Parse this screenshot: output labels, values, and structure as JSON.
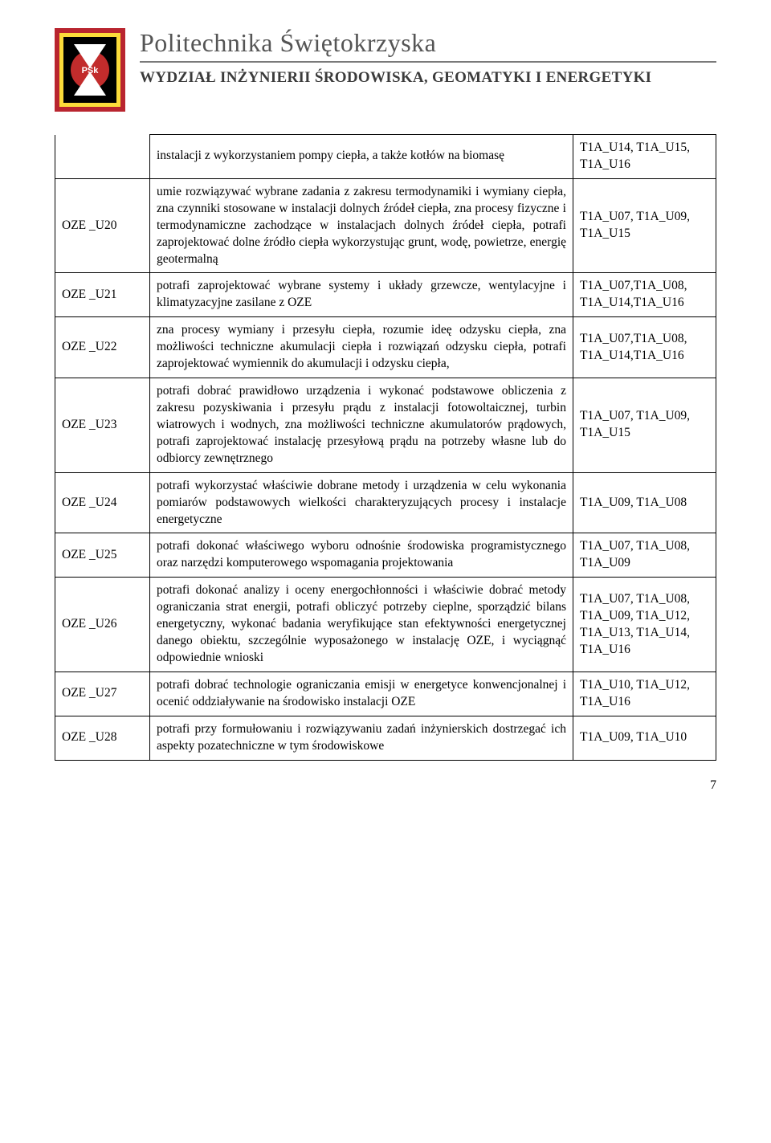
{
  "header": {
    "university": "Politechnika Świętokrzyska",
    "faculty": "WYDZIAŁ INŻYNIERII ŚRODOWISKA, GEOMATYKI I ENERGETYKI",
    "logo_colors": {
      "outer_border": "#b9252f",
      "inner_stripe": "#fcdc3a",
      "inner_bg": "#000000",
      "center_red": "#c22c2c",
      "text": "#ffffff"
    }
  },
  "top_row": {
    "desc": "instalacji z wykorzystaniem pompy ciepła, a także kotłów na biomasę",
    "refs": "T1A_U14, T1A_U15, T1A_U16"
  },
  "rows": [
    {
      "code": "OZE _U20",
      "desc": "umie rozwiązywać wybrane zadania z zakresu termodynamiki i wymiany ciepła, zna czynniki stosowane w instalacji dolnych źródeł ciepła, zna procesy fizyczne i termodynamiczne zachodzące w instalacjach dolnych źródeł ciepła, potrafi zaprojektować dolne źródło ciepła wykorzystując grunt, wodę, powietrze, energię geotermalną",
      "refs": "T1A_U07, T1A_U09, T1A_U15"
    },
    {
      "code": "OZE _U21",
      "desc": "potrafi zaprojektować wybrane systemy i układy grzewcze, wentylacyjne i klimatyzacyjne zasilane z OZE",
      "refs": "T1A_U07,T1A_U08, T1A_U14,T1A_U16"
    },
    {
      "code": "OZE _U22",
      "desc": "zna procesy wymiany i przesyłu ciepła, rozumie ideę odzysku ciepła, zna możliwości techniczne akumulacji ciepła i rozwiązań odzysku ciepła, potrafi zaprojektować wymiennik do akumulacji i odzysku ciepła,",
      "refs": "T1A_U07,T1A_U08, T1A_U14,T1A_U16"
    },
    {
      "code": "OZE _U23",
      "desc": "potrafi dobrać prawidłowo urządzenia i wykonać podstawowe obliczenia z zakresu pozyskiwania i przesyłu prądu z instalacji fotowoltaicznej, turbin wiatrowych i wodnych, zna możliwości techniczne akumulatorów prądowych, potrafi zaprojektować instalację przesyłową prądu na potrzeby własne lub do odbiorcy zewnętrznego",
      "refs": "T1A_U07, T1A_U09, T1A_U15"
    },
    {
      "code": "OZE _U24",
      "desc": "potrafi wykorzystać właściwie dobrane metody i urządzenia w celu wykonania pomiarów podstawowych wielkości charakteryzujących procesy i instalacje energetyczne",
      "refs": "T1A_U09, T1A_U08"
    },
    {
      "code": "OZE _U25",
      "desc": "potrafi dokonać właściwego wyboru odnośnie środowiska programistycznego oraz narzędzi komputerowego wspomagania projektowania",
      "refs": "T1A_U07, T1A_U08, T1A_U09"
    },
    {
      "code": "OZE _U26",
      "desc": "potrafi dokonać analizy i oceny energochłonności i właściwie dobrać metody ograniczania strat energii, potrafi obliczyć potrzeby cieplne, sporządzić bilans energetyczny, wykonać badania weryfikujące stan efektywności energetycznej danego obiektu, szczególnie wyposażonego w instalację OZE, i wyciągnąć odpowiednie wnioski",
      "refs": "T1A_U07, T1A_U08, T1A_U09, T1A_U12, T1A_U13, T1A_U14, T1A_U16"
    },
    {
      "code": "OZE _U27",
      "desc": "potrafi dobrać technologie ograniczania emisji w energetyce konwencjonalnej i ocenić oddziaływanie na środowisko instalacji OZE",
      "refs": "T1A_U10, T1A_U12, T1A_U16"
    },
    {
      "code": "OZE _U28",
      "desc": "potrafi przy formułowaniu i rozwiązywaniu zadań inżynierskich dostrzegać ich aspekty pozatechniczne w tym środowiskowe",
      "refs": "T1A_U09, T1A_U10"
    }
  ],
  "page_number": "7"
}
